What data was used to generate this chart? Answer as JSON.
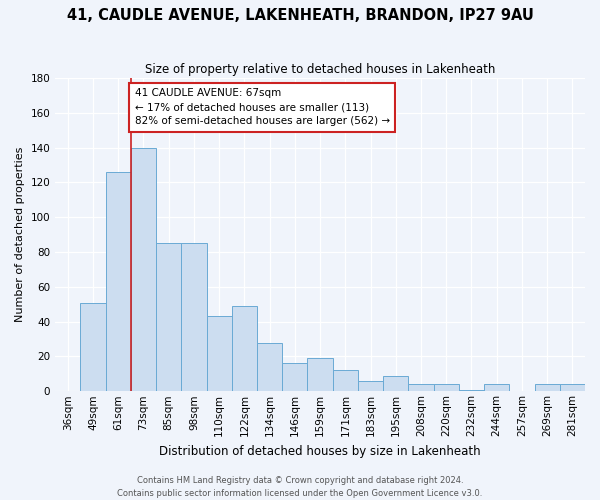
{
  "title_line1": "41, CAUDLE AVENUE, LAKENHEATH, BRANDON, IP27 9AU",
  "title_line2": "Size of property relative to detached houses in Lakenheath",
  "xlabel": "Distribution of detached houses by size in Lakenheath",
  "ylabel": "Number of detached properties",
  "categories": [
    "36sqm",
    "49sqm",
    "61sqm",
    "73sqm",
    "85sqm",
    "98sqm",
    "110sqm",
    "122sqm",
    "134sqm",
    "146sqm",
    "159sqm",
    "171sqm",
    "183sqm",
    "195sqm",
    "208sqm",
    "220sqm",
    "232sqm",
    "244sqm",
    "257sqm",
    "269sqm",
    "281sqm"
  ],
  "values": [
    0,
    51,
    126,
    140,
    85,
    85,
    43,
    49,
    28,
    16,
    19,
    12,
    6,
    9,
    4,
    4,
    1,
    4,
    0,
    4,
    4
  ],
  "bar_color": "#ccddf0",
  "bar_edge_color": "#6aaad4",
  "vline_x": 2.5,
  "vline_color": "#cc2222",
  "annotation_text": "41 CAUDLE AVENUE: 67sqm\n← 17% of detached houses are smaller (113)\n82% of semi-detached houses are larger (562) →",
  "annotation_box_facecolor": "white",
  "annotation_box_edgecolor": "#cc2222",
  "ylim": [
    0,
    180
  ],
  "yticks": [
    0,
    20,
    40,
    60,
    80,
    100,
    120,
    140,
    160,
    180
  ],
  "footer_line1": "Contains HM Land Registry data © Crown copyright and database right 2024.",
  "footer_line2": "Contains public sector information licensed under the Open Government Licence v3.0.",
  "background_color": "#f0f4fb",
  "grid_color": "white",
  "title_fontsize": 10.5,
  "subtitle_fontsize": 8.5,
  "ylabel_fontsize": 8,
  "xlabel_fontsize": 8.5,
  "tick_fontsize": 7.5,
  "footer_fontsize": 6,
  "annot_fontsize": 7.5
}
